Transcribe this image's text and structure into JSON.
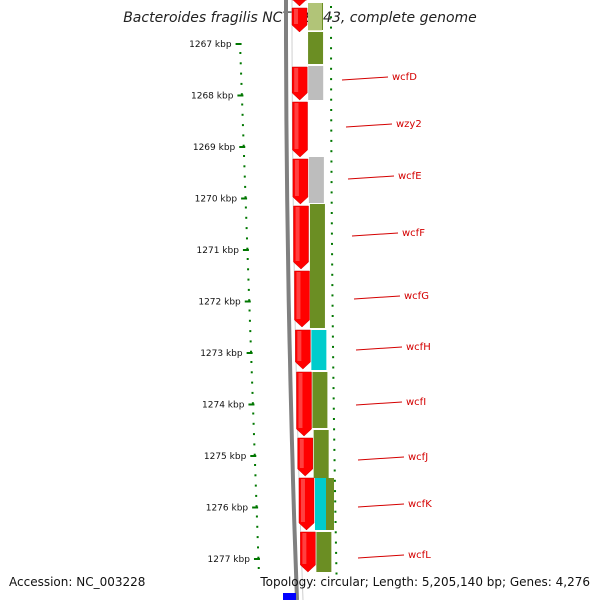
{
  "title": "Bacteroides fragilis NCTC 9343, complete genome",
  "footer": {
    "accession": "Accession: NC_003228",
    "summary": "Topology: circular; Length: 5,205,140 bp; Genes: 4,276"
  },
  "ticks": [
    "1267 kbp",
    "1268 kbp",
    "1269 kbp",
    "1270 kbp",
    "1271 kbp",
    "1272 kbp",
    "1273 kbp",
    "1274 kbp",
    "1275 kbp",
    "1276 kbp",
    "1277 kbp"
  ],
  "colors": {
    "backbone": "#808080",
    "cds": "#ff0000",
    "olive": "#6b8e23",
    "gray": "#bdbdbd",
    "cyan": "#00cccc",
    "blue": "#0000ff",
    "tick": "#007700",
    "label": "#d40000"
  },
  "genes": [
    {
      "name": "wcfD",
      "color": "gray"
    },
    {
      "name": "wzy2",
      "color": "none"
    },
    {
      "name": "wcfE",
      "color": "gray"
    },
    {
      "name": "wcfF",
      "color": "olive"
    },
    {
      "name": "wcfG",
      "color": "olive"
    },
    {
      "name": "wcfH",
      "color": "cyan"
    },
    {
      "name": "wcfI",
      "color": "olive"
    },
    {
      "name": "wcfJ",
      "color": "olive"
    },
    {
      "name": "wcfK",
      "color": "cyan"
    },
    {
      "name": "wcfL",
      "color": "olive"
    }
  ]
}
